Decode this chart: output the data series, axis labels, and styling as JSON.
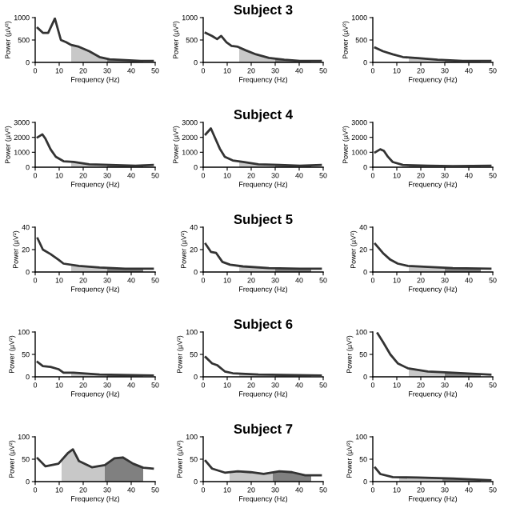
{
  "chart_data": [
    {
      "type": "line",
      "xlabel": "Frequency (Hz)",
      "ylabel": "Power (µV²)",
      "xlim": [
        0,
        50
      ],
      "xticks": [
        0,
        10,
        20,
        30,
        40,
        50
      ],
      "ylim": [
        0,
        1000
      ],
      "yticks": [
        0,
        500,
        1000
      ],
      "grid": false,
      "legend": false,
      "series": [
        {
          "color": "#333333",
          "x": [
            1,
            3.2,
            5.4,
            8.2,
            10.7,
            12.9,
            15,
            18.2,
            22.5,
            26.8,
            31,
            37.5,
            44,
            49
          ],
          "values": [
            770,
            660,
            660,
            980,
            500,
            450,
            390,
            350,
            250,
            120,
            70,
            50,
            35,
            35
          ]
        },
        {
          "type": "area",
          "color": "#c8c8c8",
          "x": [
            15,
            18.2,
            22.5,
            26.8,
            30
          ],
          "values": [
            390,
            350,
            250,
            120,
            80
          ]
        },
        {
          "type": "area",
          "color": "#808080",
          "x": [
            30,
            31,
            37.5,
            44,
            45
          ],
          "values": [
            80,
            70,
            50,
            35,
            35
          ]
        }
      ]
    },
    {
      "type": "line",
      "title": "Subject 3",
      "xlabel": "Frequency (Hz)",
      "ylabel": "Power (µV²)",
      "xlim": [
        0,
        50
      ],
      "xticks": [
        0,
        10,
        20,
        30,
        40,
        50
      ],
      "ylim": [
        0,
        1000
      ],
      "yticks": [
        0,
        500,
        1000
      ],
      "grid": false,
      "legend": false,
      "series": [
        {
          "color": "#333333",
          "x": [
            1,
            3.7,
            5.8,
            7.5,
            9.7,
            11.8,
            14.4,
            17.7,
            22,
            27.4,
            33.8,
            40.3,
            49
          ],
          "values": [
            660,
            590,
            520,
            590,
            450,
            370,
            350,
            270,
            180,
            100,
            60,
            35,
            35
          ]
        },
        {
          "type": "area",
          "color": "#c8c8c8",
          "x": [
            15,
            17.7,
            22,
            27.4,
            30
          ],
          "values": [
            335,
            270,
            180,
            100,
            85
          ]
        },
        {
          "type": "area",
          "color": "#808080",
          "x": [
            30,
            33.8,
            40.3,
            45
          ],
          "values": [
            85,
            60,
            35,
            35
          ]
        }
      ]
    },
    {
      "type": "line",
      "xlabel": "Frequency (Hz)",
      "ylabel": "Power (µV²)",
      "xlim": [
        0,
        50
      ],
      "xticks": [
        0,
        10,
        20,
        30,
        40,
        50
      ],
      "ylim": [
        0,
        1000
      ],
      "yticks": [
        0,
        500,
        1000
      ],
      "grid": false,
      "legend": false,
      "series": [
        {
          "color": "#333333",
          "x": [
            1,
            4.2,
            8.3,
            12.5,
            18.8,
            27,
            37.5,
            49
          ],
          "values": [
            330,
            250,
            180,
            120,
            95,
            60,
            35,
            35
          ]
        },
        {
          "type": "area",
          "color": "#c8c8c8",
          "x": [
            15,
            18.8,
            27,
            30
          ],
          "values": [
            110,
            95,
            60,
            53
          ]
        },
        {
          "type": "area",
          "color": "#808080",
          "x": [
            30,
            37.5,
            45
          ],
          "values": [
            53,
            35,
            35
          ]
        }
      ]
    },
    {
      "type": "line",
      "xlabel": "Frequency (Hz)",
      "ylabel": "Power (µV²)",
      "xlim": [
        0,
        50
      ],
      "xticks": [
        0,
        10,
        20,
        30,
        40,
        50
      ],
      "ylim": [
        0,
        3000
      ],
      "yticks": [
        0,
        1000,
        2000,
        3000
      ],
      "grid": false,
      "legend": false,
      "series": [
        {
          "color": "#333333",
          "x": [
            1,
            3,
            4.3,
            6.4,
            8.6,
            11.8,
            16,
            22.5,
            31,
            41.8,
            49
          ],
          "values": [
            2000,
            2200,
            1900,
            1200,
            700,
            400,
            350,
            200,
            150,
            100,
            150
          ]
        },
        {
          "type": "area",
          "color": "#c8c8c8",
          "x": [
            15,
            16,
            22.5,
            30
          ],
          "values": [
            360,
            350,
            200,
            155
          ]
        },
        {
          "type": "area",
          "color": "#808080",
          "x": [
            30,
            31,
            41.8,
            45
          ],
          "values": [
            155,
            150,
            100,
            120
          ]
        }
      ]
    },
    {
      "type": "line",
      "title": "Subject 4",
      "xlabel": "Frequency (Hz)",
      "ylabel": "Power (µV²)",
      "xlim": [
        0,
        50
      ],
      "xticks": [
        0,
        10,
        20,
        30,
        40,
        50
      ],
      "ylim": [
        0,
        3000
      ],
      "yticks": [
        0,
        1000,
        2000,
        3000
      ],
      "grid": false,
      "legend": false,
      "series": [
        {
          "color": "#333333",
          "x": [
            1,
            3.2,
            4.7,
            6.9,
            9,
            12.3,
            16.6,
            23,
            31.7,
            40.3,
            49
          ],
          "values": [
            2200,
            2600,
            2050,
            1250,
            700,
            450,
            350,
            200,
            150,
            100,
            150
          ]
        },
        {
          "type": "area",
          "color": "#c8c8c8",
          "x": [
            15,
            16.6,
            23,
            30
          ],
          "values": [
            390,
            350,
            200,
            160
          ]
        },
        {
          "type": "area",
          "color": "#808080",
          "x": [
            30,
            31.7,
            40.3,
            45
          ],
          "values": [
            160,
            150,
            100,
            125
          ]
        }
      ]
    },
    {
      "type": "line",
      "xlabel": "Frequency (Hz)",
      "ylabel": "Power (µV²)",
      "xlim": [
        0,
        50
      ],
      "xticks": [
        0,
        10,
        20,
        30,
        40,
        50
      ],
      "ylim": [
        0,
        3000
      ],
      "yticks": [
        0,
        1000,
        2000,
        3000
      ],
      "grid": false,
      "legend": false,
      "series": [
        {
          "color": "#333333",
          "x": [
            1,
            3.1,
            4.6,
            6.3,
            8.3,
            12.5,
            23,
            33.3,
            49
          ],
          "values": [
            1000,
            1200,
            1100,
            700,
            350,
            150,
            100,
            70,
            100
          ]
        },
        {
          "type": "area",
          "color": "#c8c8c8",
          "x": [
            15,
            23,
            30
          ],
          "values": [
            140,
            100,
            80
          ]
        },
        {
          "type": "area",
          "color": "#808080",
          "x": [
            30,
            33.3,
            45
          ],
          "values": [
            80,
            70,
            90
          ]
        }
      ]
    },
    {
      "type": "line",
      "xlabel": "Frequency (Hz)",
      "ylabel": "Power (µV²)",
      "xlim": [
        0,
        50
      ],
      "xticks": [
        0,
        10,
        20,
        30,
        40,
        50
      ],
      "ylim": [
        0,
        40
      ],
      "yticks": [
        0,
        20,
        40
      ],
      "grid": false,
      "legend": false,
      "series": [
        {
          "color": "#333333",
          "x": [
            1,
            3.2,
            6.4,
            9.7,
            11.8,
            18.2,
            26.8,
            37.5,
            49
          ],
          "values": [
            30,
            20,
            16,
            11,
            7.5,
            5.5,
            4,
            3,
            3
          ]
        },
        {
          "type": "area",
          "color": "#c8c8c8",
          "x": [
            15,
            18.2,
            26.8,
            30
          ],
          "values": [
            6.5,
            5.5,
            4,
            3.5
          ]
        },
        {
          "type": "area",
          "color": "#808080",
          "x": [
            30,
            37.5,
            45
          ],
          "values": [
            3.5,
            3,
            3
          ]
        }
      ]
    },
    {
      "type": "line",
      "title": "Subject 5",
      "xlabel": "Frequency (Hz)",
      "ylabel": "Power (µV²)",
      "xlim": [
        0,
        50
      ],
      "xticks": [
        0,
        10,
        20,
        30,
        40,
        50
      ],
      "ylim": [
        0,
        40
      ],
      "yticks": [
        0,
        20,
        40
      ],
      "grid": false,
      "legend": false,
      "series": [
        {
          "color": "#333333",
          "x": [
            1,
            3.2,
            5.4,
            8,
            11.2,
            16.6,
            27.4,
            40.3,
            49
          ],
          "values": [
            25,
            18,
            17,
            9,
            6.5,
            5,
            3.5,
            3,
            3
          ]
        },
        {
          "type": "area",
          "color": "#c8c8c8",
          "x": [
            15,
            16.6,
            27.4,
            30
          ],
          "values": [
            5.5,
            5,
            3.5,
            3.5
          ]
        },
        {
          "type": "area",
          "color": "#808080",
          "x": [
            30,
            40.3,
            45
          ],
          "values": [
            3.5,
            3,
            3
          ]
        }
      ]
    },
    {
      "type": "line",
      "xlabel": "Frequency (Hz)",
      "ylabel": "Power (µV²)",
      "xlim": [
        0,
        50
      ],
      "xticks": [
        0,
        10,
        20,
        30,
        40,
        50
      ],
      "ylim": [
        0,
        40
      ],
      "yticks": [
        0,
        20,
        40
      ],
      "grid": false,
      "legend": false,
      "series": [
        {
          "color": "#333333",
          "x": [
            1,
            4.2,
            7.3,
            10.4,
            14.6,
            22.9,
            33.3,
            49
          ],
          "values": [
            25,
            17,
            11,
            7.5,
            5.5,
            4.5,
            3.5,
            3
          ]
        },
        {
          "type": "area",
          "color": "#c8c8c8",
          "x": [
            15,
            22.9,
            30
          ],
          "values": [
            5.5,
            4.5,
            4
          ]
        },
        {
          "type": "area",
          "color": "#808080",
          "x": [
            30,
            33.3,
            45
          ],
          "values": [
            4,
            3.5,
            3
          ]
        }
      ]
    },
    {
      "type": "line",
      "xlabel": "Frequency (Hz)",
      "ylabel": "Power (µV²)",
      "xlim": [
        0,
        50
      ],
      "xticks": [
        0,
        10,
        20,
        30,
        40,
        50
      ],
      "ylim": [
        0,
        100
      ],
      "yticks": [
        0,
        50,
        100
      ],
      "grid": false,
      "legend": false,
      "series": [
        {
          "color": "#333333",
          "x": [
            1,
            3.2,
            6.4,
            9.7,
            11.8,
            16,
            26.8,
            49
          ],
          "values": [
            33,
            24,
            22,
            17,
            9,
            9,
            5,
            3
          ]
        },
        {
          "type": "area",
          "color": "#c8c8c8",
          "x": [
            15,
            16,
            26.8,
            30
          ],
          "values": [
            9,
            9,
            5,
            5
          ]
        },
        {
          "type": "area",
          "color": "#808080",
          "x": [
            30,
            45
          ],
          "values": [
            5,
            4
          ]
        }
      ]
    },
    {
      "type": "line",
      "title": "Subject 6",
      "xlabel": "Frequency (Hz)",
      "ylabel": "Power (µV²)",
      "xlim": [
        0,
        50
      ],
      "xticks": [
        0,
        10,
        20,
        30,
        40,
        50
      ],
      "ylim": [
        0,
        100
      ],
      "yticks": [
        0,
        50,
        100
      ],
      "grid": false,
      "legend": false,
      "series": [
        {
          "color": "#333333",
          "x": [
            1,
            3.7,
            5.8,
            9,
            12.3,
            23,
            49
          ],
          "values": [
            44,
            30,
            26,
            12,
            8,
            5,
            3
          ]
        },
        {
          "type": "area",
          "color": "#c8c8c8",
          "x": [
            15,
            23,
            30
          ],
          "values": [
            7,
            5,
            5
          ]
        },
        {
          "type": "area",
          "color": "#808080",
          "x": [
            30,
            45
          ],
          "values": [
            5,
            4
          ]
        }
      ]
    },
    {
      "type": "line",
      "xlabel": "Frequency (Hz)",
      "ylabel": "Power (µV²)",
      "xlim": [
        0,
        50
      ],
      "xticks": [
        0,
        10,
        20,
        30,
        40,
        50
      ],
      "ylim": [
        0,
        100
      ],
      "yticks": [
        0,
        50,
        100
      ],
      "grid": false,
      "legend": false,
      "series": [
        {
          "color": "#333333",
          "x": [
            2,
            4.2,
            7.3,
            10.4,
            14.6,
            22.9,
            33.3,
            49
          ],
          "values": [
            97,
            78,
            50,
            30,
            19,
            12,
            9,
            5
          ]
        },
        {
          "type": "area",
          "color": "#c8c8c8",
          "x": [
            15,
            22.9,
            30
          ],
          "values": [
            19,
            12,
            10
          ]
        },
        {
          "type": "area",
          "color": "#808080",
          "x": [
            30,
            33.3,
            45
          ],
          "values": [
            10,
            9,
            6
          ]
        }
      ]
    },
    {
      "type": "line",
      "xlabel": "Frequency (Hz)",
      "ylabel": "Power (µV²)",
      "xlim": [
        0,
        50
      ],
      "xticks": [
        0,
        10,
        20,
        30,
        40,
        50
      ],
      "ylim": [
        0,
        100
      ],
      "yticks": [
        0,
        50,
        100
      ],
      "grid": false,
      "legend": false,
      "series": [
        {
          "color": "#333333",
          "x": [
            1,
            4.3,
            9.7,
            13.5,
            15.7,
            18.2,
            23.6,
            29,
            33,
            36.5,
            40.8,
            45,
            49
          ],
          "values": [
            52,
            34,
            40,
            63,
            72,
            46,
            32,
            37,
            52,
            54,
            40,
            31,
            29
          ]
        },
        {
          "type": "area",
          "color": "#c8c8c8",
          "x": [
            11,
            13.5,
            15.7,
            18.2,
            23.6,
            29
          ],
          "values": [
            48,
            63,
            72,
            46,
            32,
            37
          ]
        },
        {
          "type": "area",
          "color": "#808080",
          "x": [
            29,
            33,
            36.5,
            40.8,
            45
          ],
          "values": [
            37,
            52,
            54,
            40,
            31
          ]
        }
      ]
    },
    {
      "type": "line",
      "title": "Subject 7",
      "xlabel": "Frequency (Hz)",
      "ylabel": "Power (µV²)",
      "xlim": [
        0,
        50
      ],
      "xticks": [
        0,
        10,
        20,
        30,
        40,
        50
      ],
      "ylim": [
        0,
        100
      ],
      "yticks": [
        0,
        50,
        100
      ],
      "grid": false,
      "legend": false,
      "series": [
        {
          "color": "#333333",
          "x": [
            1,
            3.7,
            9,
            14.4,
            19.8,
            25.2,
            31.7,
            37,
            42.5,
            49
          ],
          "values": [
            46,
            29,
            20,
            23,
            21,
            17,
            23,
            21,
            14,
            14
          ]
        },
        {
          "type": "area",
          "color": "#c8c8c8",
          "x": [
            11,
            14.4,
            19.8,
            25.2,
            29
          ],
          "values": [
            21,
            23,
            21,
            17,
            21
          ]
        },
        {
          "type": "area",
          "color": "#808080",
          "x": [
            29,
            31.7,
            37,
            42.5,
            45
          ],
          "values": [
            21,
            23,
            21,
            14,
            14
          ]
        }
      ]
    },
    {
      "type": "line",
      "xlabel": "Frequency (Hz)",
      "ylabel": "Power (µV²)",
      "xlim": [
        0,
        50
      ],
      "xticks": [
        0,
        10,
        20,
        30,
        40,
        50
      ],
      "ylim": [
        0,
        100
      ],
      "yticks": [
        0,
        50,
        100
      ],
      "grid": false,
      "legend": false,
      "series": [
        {
          "color": "#333333",
          "x": [
            1,
            3.1,
            8.3,
            18.8,
            33.3,
            49
          ],
          "values": [
            31,
            17,
            10,
            9,
            7,
            3
          ]
        },
        {
          "type": "area",
          "color": "#c8c8c8",
          "x": [
            11,
            18.8,
            29
          ],
          "values": [
            10,
            9,
            7.5
          ]
        },
        {
          "type": "area",
          "color": "#808080",
          "x": [
            29,
            33.3,
            45
          ],
          "values": [
            7.5,
            7,
            4
          ]
        }
      ]
    }
  ]
}
